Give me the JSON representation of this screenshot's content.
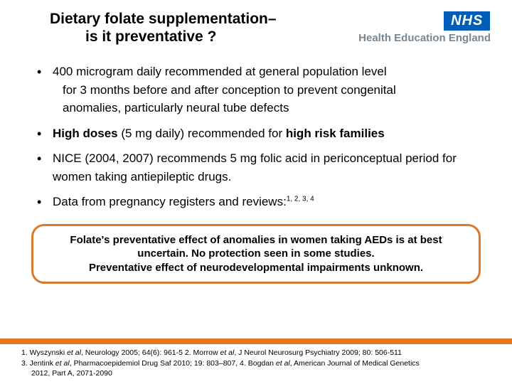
{
  "colors": {
    "nhs_blue": "#005eb8",
    "hee_gray": "#768692",
    "orange_border": "#d9792b",
    "orange_bar": "#e87722",
    "text": "#000000",
    "background": "#ffffff"
  },
  "typography": {
    "title_fontsize": 21,
    "body_fontsize": 17,
    "callout_fontsize": 15,
    "refs_fontsize": 10.5,
    "font_family": "Arial"
  },
  "title": {
    "line1": "Dietary folate supplementation–",
    "line2": "is it preventative ?"
  },
  "logo": {
    "nhs": "NHS",
    "hee": "Health Education England"
  },
  "bullets": [
    {
      "main": "400 microgram daily recommended at general population level",
      "cont1": "for 3 months before and after conception to prevent congenital",
      "cont2": "anomalies, particularly neural tube defects"
    },
    {
      "main_html": "High doses (5 mg daily) recommended for high risk families"
    },
    {
      "main": "NICE (2004, 2007) recommends 5 mg folic acid in periconceptual period for women taking antiepileptic drugs."
    },
    {
      "main_prefix": "Data from pregnancy registers and reviews:",
      "sup": "1, 2, 3, 4"
    }
  ],
  "callout": {
    "line1": "Folate's preventative effect of anomalies in women taking AEDs  is at best uncertain.  No protection seen in some studies.",
    "line2": "Preventative effect of neurodevelopmental impairments unknown."
  },
  "refs": {
    "r1a": "1. Wyszynski ",
    "r1b": "et al",
    "r1c": ", Neurology 2005; 64(6): 961-5  2. Morrow ",
    "r1d": "et al",
    "r1e": ", J Neurol Neurosurg Psychiatry 2009; 80: 506-511",
    "r2a": "3. Jentink ",
    "r2b": "et al",
    "r2c": ", Pharmacoepidemiol Drug Saf 2010; 19: 803–807, 4. Bogdan ",
    "r2d": "et al",
    "r2e": ", American Journal of Medical Genetics",
    "r3": "2012, Part A, 2071-2090"
  }
}
